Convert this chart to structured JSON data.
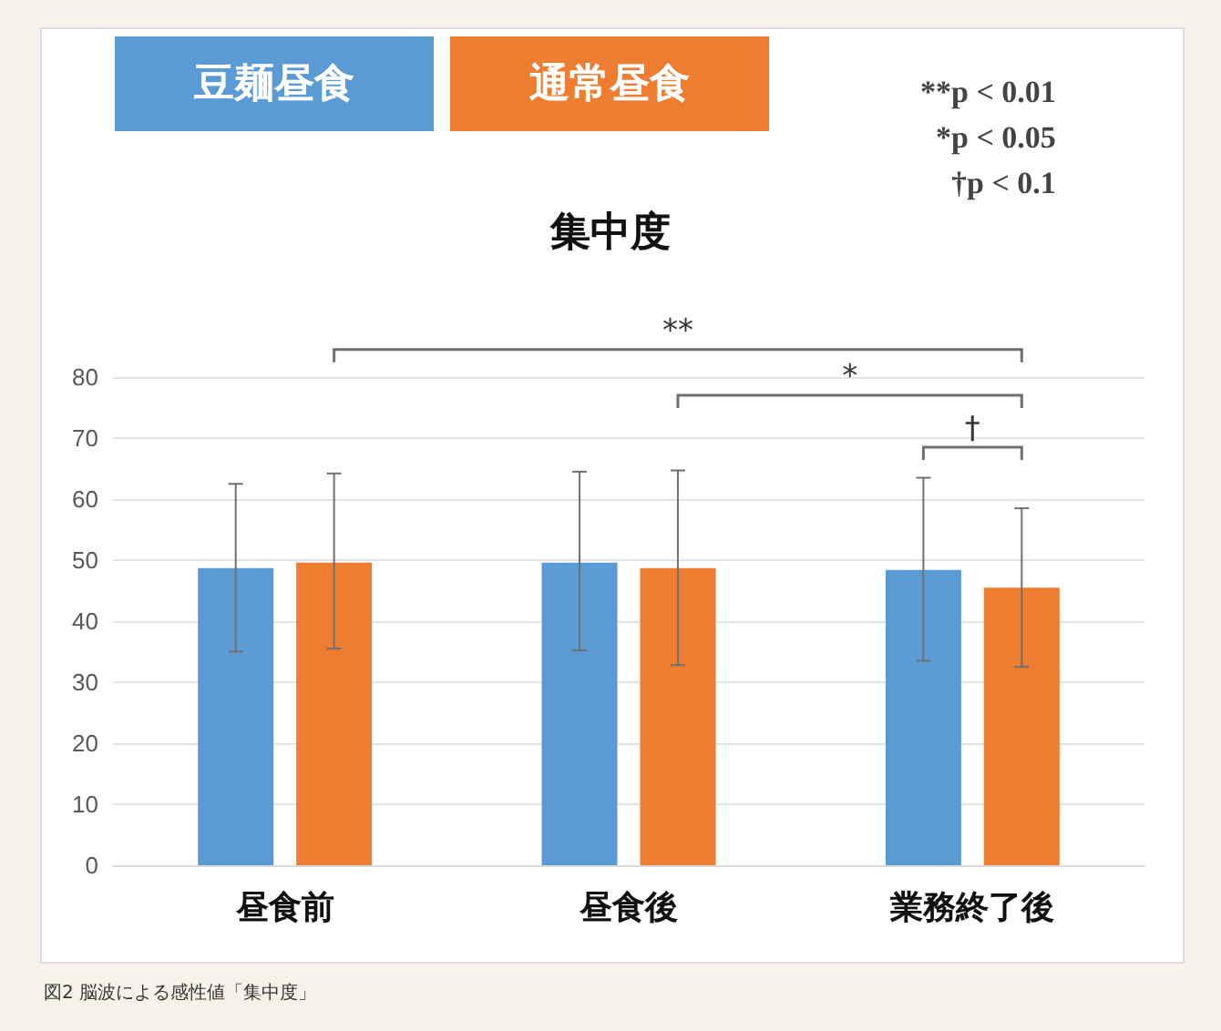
{
  "chart_data": {
    "type": "bar",
    "title": "集中度",
    "categories": [
      "昼食前",
      "昼食後",
      "業務終了後"
    ],
    "series": [
      {
        "name": "豆麺昼食",
        "color": "#5b9bd5",
        "values": [
          48.7,
          49.6,
          48.4
        ],
        "errors": [
          [
            35,
            62.5
          ],
          [
            35.2,
            64.5
          ],
          [
            33.5,
            63.5
          ]
        ]
      },
      {
        "name": "通常昼食",
        "color": "#ed7d31",
        "values": [
          49.6,
          48.7,
          45.5
        ],
        "errors": [
          [
            35.5,
            64.2
          ],
          [
            32.8,
            64.7
          ],
          [
            32.5,
            58.5
          ]
        ]
      }
    ],
    "ylim": [
      0,
      80
    ],
    "yticks": [
      0,
      10,
      20,
      30,
      40,
      50,
      60,
      70,
      80
    ],
    "grid": "y",
    "legend": "top",
    "annotations": [
      "**p < 0.01",
      "*p < 0.05",
      "†p < 0.1",
      "**",
      "*",
      "†",
      "図2 脳波による感性値「集中度」"
    ]
  }
}
